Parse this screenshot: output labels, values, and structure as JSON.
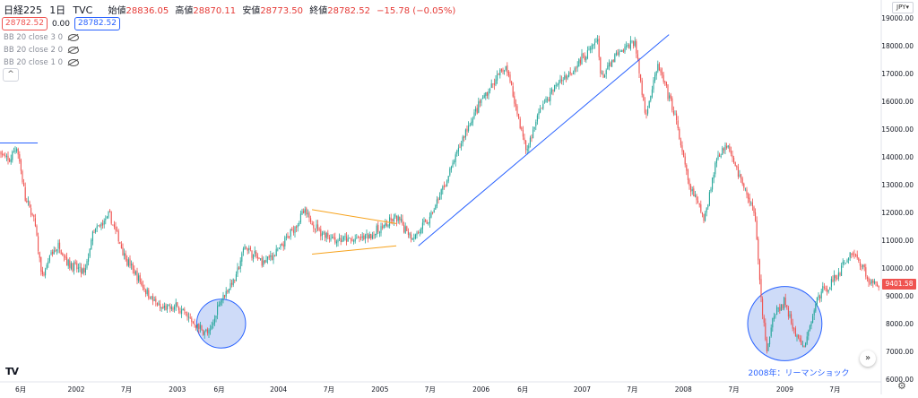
{
  "header": {
    "symbol": "日経225",
    "interval": "1日",
    "source": "TVC",
    "open_label": "始値",
    "open_value": "28836.05",
    "high_label": "高値",
    "high_value": "28870.11",
    "low_label": "安値",
    "low_value": "28773.50",
    "close_label": "終値",
    "close_value": "28782.52",
    "change": "−15.78 (−0.05%)",
    "sell_price": "28782.52",
    "spread": "0.00",
    "buy_price": "28782.52"
  },
  "indicators": [
    {
      "label": "BB 20 close 3 0"
    },
    {
      "label": "BB 20 close 2 0"
    },
    {
      "label": "BB 20 close 1 0"
    }
  ],
  "currency_label": "JPY",
  "last_price_tag": "9401.58",
  "annotation_text": "2008年：リーマンショック",
  "logo_text": "TV",
  "colors": {
    "up": "#26a69a",
    "down": "#ef5350",
    "trendline": "#2962ff",
    "triangle": "#f7a21b",
    "circle_fill": "#c5d5f7"
  },
  "chart_data": {
    "type": "candlestick",
    "y_axis_ticks": [
      "19000.00",
      "18000.00",
      "17000.00",
      "16000.00",
      "15000.00",
      "14000.00",
      "13000.00",
      "12000.00",
      "11000.00",
      "10000.00",
      "9000.00",
      "8000.00",
      "7000.00",
      "6000.00"
    ],
    "ylim": [
      6000,
      19000
    ],
    "x_axis_ticks": [
      "6月",
      "2002",
      "7月",
      "2003",
      "6月",
      "2004",
      "7月",
      "2005",
      "7月",
      "2006",
      "6月",
      "2007",
      "7月",
      "2008",
      "7月",
      "2009",
      "7月"
    ],
    "xlim": [
      "2001-04",
      "2009-12"
    ],
    "price_path": [
      {
        "date": "2001-04-01",
        "price": 14200
      },
      {
        "date": "2001-05-01",
        "price": 13800
      },
      {
        "date": "2001-06-01",
        "price": 14400
      },
      {
        "date": "2001-07-01",
        "price": 12500
      },
      {
        "date": "2001-08-01",
        "price": 11800
      },
      {
        "date": "2001-09-01",
        "price": 9600
      },
      {
        "date": "2001-10-01",
        "price": 10500
      },
      {
        "date": "2001-11-01",
        "price": 10800
      },
      {
        "date": "2001-12-01",
        "price": 10200
      },
      {
        "date": "2002-01-01",
        "price": 10000
      },
      {
        "date": "2002-02-01",
        "price": 9800
      },
      {
        "date": "2002-03-01",
        "price": 11200
      },
      {
        "date": "2002-05-01",
        "price": 11900
      },
      {
        "date": "2002-07-01",
        "price": 10300
      },
      {
        "date": "2002-09-01",
        "price": 9300
      },
      {
        "date": "2002-11-01",
        "price": 8500
      },
      {
        "date": "2003-01-01",
        "price": 8600
      },
      {
        "date": "2003-03-01",
        "price": 8000
      },
      {
        "date": "2003-04-28",
        "price": 7600
      },
      {
        "date": "2003-06-01",
        "price": 8800
      },
      {
        "date": "2003-08-01",
        "price": 9700
      },
      {
        "date": "2003-09-01",
        "price": 10800
      },
      {
        "date": "2003-11-01",
        "price": 10200
      },
      {
        "date": "2004-01-01",
        "price": 10600
      },
      {
        "date": "2004-04-01",
        "price": 12000
      },
      {
        "date": "2004-06-01",
        "price": 11300
      },
      {
        "date": "2004-08-01",
        "price": 11000
      },
      {
        "date": "2004-10-01",
        "price": 11000
      },
      {
        "date": "2004-12-01",
        "price": 11200
      },
      {
        "date": "2005-03-01",
        "price": 11800
      },
      {
        "date": "2005-05-01",
        "price": 11100
      },
      {
        "date": "2005-07-01",
        "price": 11800
      },
      {
        "date": "2005-09-01",
        "price": 13200
      },
      {
        "date": "2005-11-01",
        "price": 14800
      },
      {
        "date": "2006-01-01",
        "price": 16000
      },
      {
        "date": "2006-04-01",
        "price": 17300
      },
      {
        "date": "2006-06-14",
        "price": 14200
      },
      {
        "date": "2006-08-01",
        "price": 15700
      },
      {
        "date": "2006-10-01",
        "price": 16600
      },
      {
        "date": "2006-12-01",
        "price": 17200
      },
      {
        "date": "2007-02-26",
        "price": 18200
      },
      {
        "date": "2007-03-10",
        "price": 16800
      },
      {
        "date": "2007-05-01",
        "price": 17600
      },
      {
        "date": "2007-07-09",
        "price": 18200
      },
      {
        "date": "2007-08-17",
        "price": 15500
      },
      {
        "date": "2007-10-01",
        "price": 17300
      },
      {
        "date": "2007-12-01",
        "price": 15500
      },
      {
        "date": "2008-01-20",
        "price": 13000
      },
      {
        "date": "2008-03-17",
        "price": 11800
      },
      {
        "date": "2008-05-01",
        "price": 14000
      },
      {
        "date": "2008-06-10",
        "price": 14500
      },
      {
        "date": "2008-08-01",
        "price": 13000
      },
      {
        "date": "2008-09-15",
        "price": 12000
      },
      {
        "date": "2008-10-10",
        "price": 8500
      },
      {
        "date": "2008-10-28",
        "price": 7100
      },
      {
        "date": "2008-11-20",
        "price": 8200
      },
      {
        "date": "2008-12-30",
        "price": 8800
      },
      {
        "date": "2009-02-01",
        "price": 7800
      },
      {
        "date": "2009-03-10",
        "price": 7050
      },
      {
        "date": "2009-05-01",
        "price": 9000
      },
      {
        "date": "2009-07-01",
        "price": 9600
      },
      {
        "date": "2009-08-30",
        "price": 10600
      },
      {
        "date": "2009-10-01",
        "price": 10200
      },
      {
        "date": "2009-11-01",
        "price": 9500
      },
      {
        "date": "2009-12-01",
        "price": 9400
      }
    ],
    "drawings": {
      "horizontal_line": {
        "date_start": "2001-04-01",
        "date_end": "2001-08-15",
        "price": 14500
      },
      "trend_line": {
        "date_start": "2005-05-20",
        "price_start": 10800,
        "date_end": "2007-11-10",
        "price_end": 18400
      },
      "triangle_upper": {
        "date_start": "2004-05-01",
        "price_start": 12100,
        "date_end": "2005-03-01",
        "price_end": 11600
      },
      "triangle_lower": {
        "date_start": "2004-05-01",
        "price_start": 10500,
        "date_end": "2005-03-01",
        "price_end": 10800
      },
      "circle_2003": {
        "date_center": "2003-06-08",
        "price_center": 8000,
        "radius_months": 2.9
      },
      "circle_2008": {
        "date_center": "2009-01-01",
        "price_center": 8000,
        "radius_months": 4.4
      }
    }
  }
}
